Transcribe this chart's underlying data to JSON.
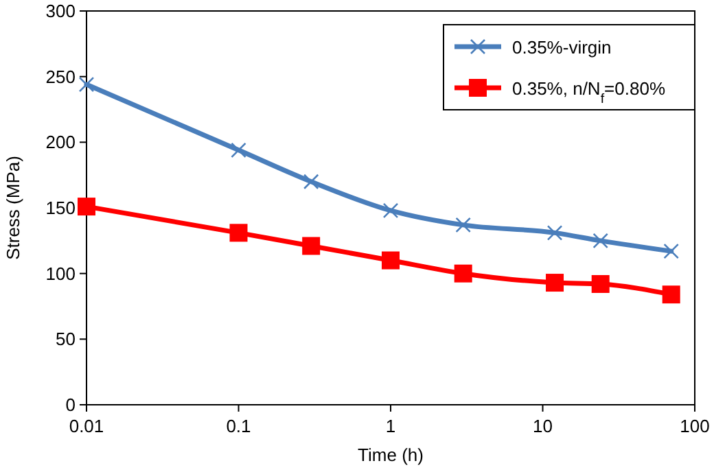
{
  "chart_data": {
    "type": "line",
    "xlabel": "Time (h)",
    "ylabel": "Stress (MPa)",
    "log": "x",
    "xlim": [
      0.01,
      100
    ],
    "xticks": [
      0.01,
      0.1,
      1,
      10,
      100
    ],
    "ylim": [
      0,
      300
    ],
    "yticks": [
      0,
      50,
      100,
      150,
      200,
      250,
      300
    ],
    "grid": false,
    "legend": "top right",
    "line_style": "solid",
    "series": [
      {
        "name": "0.35%-virgin",
        "color": "#4a7ebb",
        "marker": "cross",
        "x": [
          0.01,
          0.1,
          0.3,
          1,
          3,
          12,
          24,
          70
        ],
        "values": [
          244,
          194,
          170,
          148,
          137,
          131,
          125,
          117
        ]
      },
      {
        "name": "0.35%, n/N$_{f}$=0.80%",
        "color": "#ff0000",
        "marker": "square",
        "x": [
          0.01,
          0.1,
          0.3,
          1,
          3,
          12,
          24,
          70
        ],
        "values": [
          151,
          131,
          121,
          110,
          100,
          93,
          92,
          84
        ]
      }
    ]
  }
}
